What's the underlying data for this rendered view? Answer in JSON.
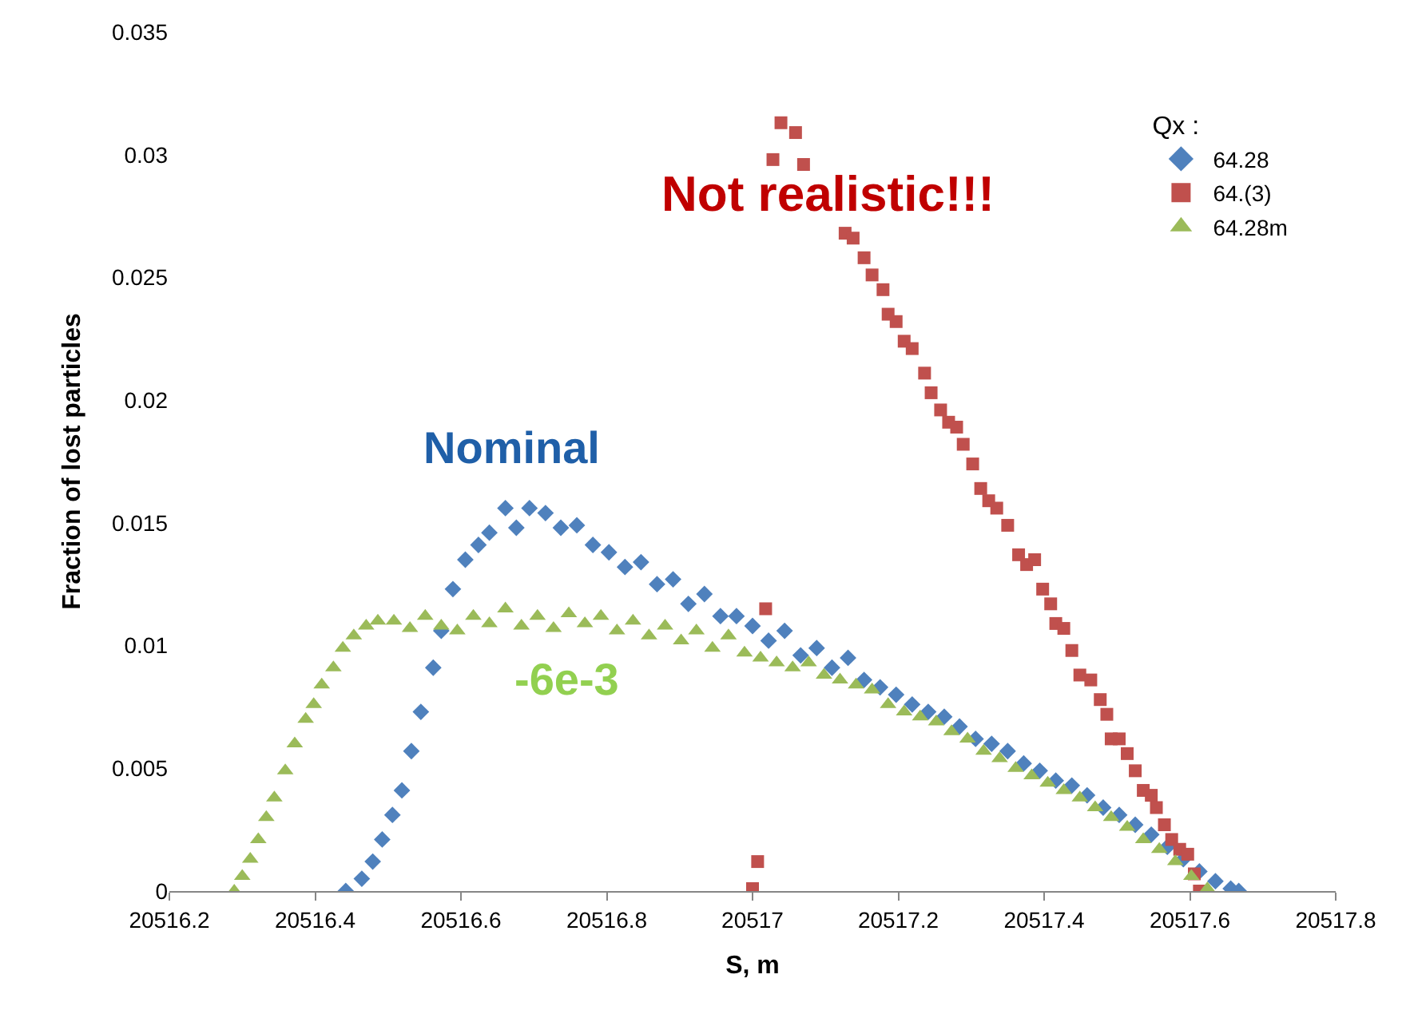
{
  "chart_data": {
    "type": "scatter",
    "xlabel": "S, m",
    "ylabel": "Fraction of lost particles",
    "legend_title": "Qx :",
    "legend": "top right",
    "grid": false,
    "xlim": [
      20516.2,
      20517.8
    ],
    "xticks": [
      20516.2,
      20516.4,
      20516.6,
      20516.8,
      20517,
      20517.2,
      20517.4,
      20517.6,
      20517.8
    ],
    "ylim": [
      0,
      0.035
    ],
    "yticks": [
      0,
      0.005,
      0.01,
      0.015,
      0.02,
      0.025,
      0.03,
      0.035
    ],
    "annotations": [
      "Not realistic!!!",
      "Nominal",
      "-6e-3"
    ],
    "series": [
      {
        "name": "64.28",
        "color": "#4f81bd",
        "marker": "diamond",
        "x": [
          20516.442,
          20516.464,
          20516.479,
          20516.492,
          20516.506,
          20516.519,
          20516.532,
          20516.545,
          20516.562,
          20516.573,
          20516.589,
          20516.606,
          20516.624,
          20516.639,
          20516.661,
          20516.676,
          20516.694,
          20516.716,
          20516.737,
          20516.759,
          20516.781,
          20516.803,
          20516.825,
          20516.847,
          20516.869,
          20516.891,
          20516.912,
          20516.934,
          20516.956,
          20516.978,
          20517.0,
          20517.022,
          20517.044,
          20517.066,
          20517.088,
          20517.109,
          20517.131,
          20517.153,
          20517.175,
          20517.197,
          20517.219,
          20517.241,
          20517.263,
          20517.284,
          20517.306,
          20517.328,
          20517.35,
          20517.372,
          20517.394,
          20517.416,
          20517.438,
          20517.459,
          20517.481,
          20517.503,
          20517.525,
          20517.547,
          20517.569,
          20517.591,
          20517.613,
          20517.635,
          20517.656,
          20517.667
        ],
        "values": [
          0,
          0.0005,
          0.0012,
          0.0021,
          0.0031,
          0.0041,
          0.0057,
          0.0073,
          0.0091,
          0.0106,
          0.0123,
          0.0135,
          0.0141,
          0.0146,
          0.0156,
          0.0148,
          0.0156,
          0.0154,
          0.0148,
          0.0149,
          0.0141,
          0.0138,
          0.0132,
          0.0134,
          0.0125,
          0.0127,
          0.0117,
          0.0121,
          0.0112,
          0.0112,
          0.0108,
          0.0102,
          0.0106,
          0.0096,
          0.0099,
          0.0091,
          0.0095,
          0.0086,
          0.0083,
          0.008,
          0.0076,
          0.0073,
          0.0071,
          0.0067,
          0.0062,
          0.006,
          0.0057,
          0.0052,
          0.0049,
          0.0045,
          0.0043,
          0.0039,
          0.0034,
          0.0031,
          0.0027,
          0.0023,
          0.0018,
          0.0013,
          0.0008,
          0.0004,
          0.0001,
          0
        ]
      },
      {
        "name": "64.(3)",
        "color": "#c0504d",
        "marker": "square",
        "x": [
          20517.0,
          20517.007,
          20517.018,
          20517.028,
          20517.039,
          20517.059,
          20517.07,
          20517.109,
          20517.127,
          20517.138,
          20517.153,
          20517.164,
          20517.179,
          20517.186,
          20517.197,
          20517.208,
          20517.219,
          20517.236,
          20517.245,
          20517.258,
          20517.269,
          20517.28,
          20517.289,
          20517.302,
          20517.313,
          20517.324,
          20517.335,
          20517.35,
          20517.365,
          20517.376,
          20517.387,
          20517.398,
          20517.409,
          20517.416,
          20517.427,
          20517.438,
          20517.449,
          20517.464,
          20517.477,
          20517.486,
          20517.492,
          20517.503,
          20517.514,
          20517.525,
          20517.536,
          20517.547,
          20517.554,
          20517.565,
          20517.575,
          20517.586,
          20517.597,
          20517.606,
          20517.613
        ],
        "values": [
          0.0001,
          0.0012,
          0.0115,
          0.0298,
          0.0313,
          0.0309,
          0.0296,
          null,
          0.0268,
          0.0266,
          0.0258,
          0.0251,
          0.0245,
          0.0235,
          0.0232,
          0.0224,
          0.0221,
          0.0211,
          0.0203,
          0.0196,
          0.0191,
          0.0189,
          0.0182,
          0.0174,
          0.0164,
          0.0159,
          0.0156,
          0.0149,
          0.0137,
          0.0133,
          0.0135,
          0.0123,
          0.0117,
          0.0109,
          0.0107,
          0.0098,
          0.0088,
          0.0086,
          0.0078,
          0.0072,
          0.0062,
          0.0062,
          0.0056,
          0.0049,
          0.0041,
          0.0039,
          0.0034,
          0.0027,
          0.0021,
          0.0017,
          0.0015,
          0.0007,
          0
        ]
      },
      {
        "name": "64.28m",
        "color": "#9bbb59",
        "marker": "triangle",
        "x": [
          20516.289,
          20516.3,
          20516.311,
          20516.322,
          20516.333,
          20516.344,
          20516.359,
          20516.372,
          20516.387,
          20516.398,
          20516.409,
          20516.425,
          20516.438,
          20516.453,
          20516.47,
          20516.486,
          20516.508,
          20516.53,
          20516.551,
          20516.573,
          20516.595,
          20516.617,
          20516.639,
          20516.661,
          20516.683,
          20516.705,
          20516.727,
          20516.748,
          20516.77,
          20516.792,
          20516.814,
          20516.836,
          20516.858,
          20516.88,
          20516.902,
          20516.923,
          20516.945,
          20516.967,
          20516.989,
          20517.011,
          20517.033,
          20517.055,
          20517.077,
          20517.098,
          20517.12,
          20517.142,
          20517.164,
          20517.186,
          20517.208,
          20517.23,
          20517.252,
          20517.273,
          20517.295,
          20517.317,
          20517.339,
          20517.361,
          20517.383,
          20517.405,
          20517.427,
          20517.449,
          20517.47,
          20517.492,
          20517.514,
          20517.536,
          20517.558,
          20517.58,
          20517.602,
          20517.624
        ],
        "values": [
          0,
          0.0006,
          0.0013,
          0.0021,
          0.003,
          0.0038,
          0.0049,
          0.006,
          0.007,
          0.0076,
          0.0084,
          0.0091,
          0.0099,
          0.0104,
          0.0108,
          0.011,
          0.011,
          0.0107,
          0.0112,
          0.0108,
          0.0106,
          0.0112,
          0.0109,
          0.0115,
          0.0108,
          0.0112,
          0.0107,
          0.0113,
          0.0109,
          0.0112,
          0.0106,
          0.011,
          0.0104,
          0.0108,
          0.0102,
          0.0106,
          0.0099,
          0.0104,
          0.0097,
          0.0095,
          0.0093,
          0.0091,
          0.0093,
          0.0088,
          0.0086,
          0.0084,
          0.0082,
          0.0076,
          0.0073,
          0.0071,
          0.0069,
          0.0065,
          0.0062,
          0.0057,
          0.0054,
          0.005,
          0.0047,
          0.0044,
          0.0041,
          0.0038,
          0.0034,
          0.003,
          0.0026,
          0.0021,
          0.0017,
          0.0012,
          0.0006,
          0.0001
        ]
      }
    ]
  }
}
